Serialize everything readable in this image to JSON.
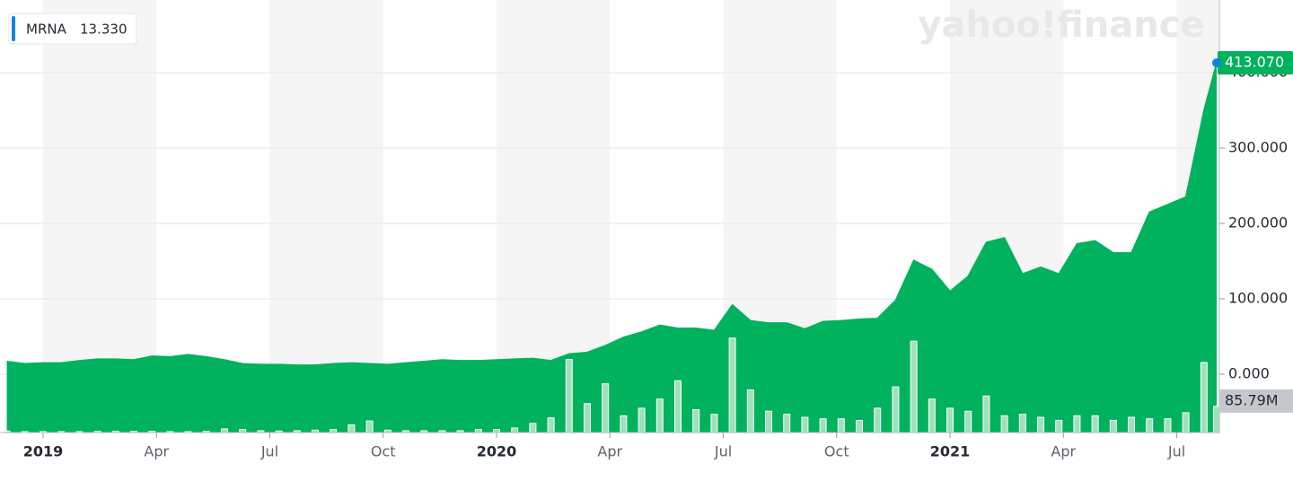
{
  "chart_data": {
    "type": "area",
    "watermark": "yahoo!finance",
    "legend_value": "13.330",
    "x": [
      2018.92,
      2018.96,
      2019.0,
      2019.04,
      2019.08,
      2019.12,
      2019.16,
      2019.2,
      2019.24,
      2019.28,
      2019.32,
      2019.36,
      2019.4,
      2019.44,
      2019.48,
      2019.52,
      2019.56,
      2019.6,
      2019.64,
      2019.68,
      2019.72,
      2019.76,
      2019.8,
      2019.84,
      2019.88,
      2019.92,
      2019.96,
      2020.0,
      2020.04,
      2020.08,
      2020.12,
      2020.16,
      2020.2,
      2020.24,
      2020.28,
      2020.32,
      2020.36,
      2020.4,
      2020.44,
      2020.48,
      2020.52,
      2020.56,
      2020.6,
      2020.64,
      2020.68,
      2020.72,
      2020.76,
      2020.8,
      2020.84,
      2020.88,
      2020.92,
      2020.96,
      2021.0,
      2021.04,
      2021.08,
      2021.12,
      2021.16,
      2021.2,
      2021.24,
      2021.28,
      2021.32,
      2021.36,
      2021.4,
      2021.44,
      2021.48,
      2021.52,
      2021.56,
      2021.588
    ],
    "series": [
      {
        "name": "MRNA",
        "color": "#00b15d",
        "values": [
          17,
          14,
          15,
          15,
          18,
          20,
          20,
          19,
          24,
          23,
          26,
          23,
          19,
          14,
          13,
          13,
          12,
          12,
          14,
          15,
          14,
          13,
          15,
          17,
          19,
          18,
          18,
          19,
          20,
          21,
          18,
          27,
          29,
          38,
          49,
          56,
          65,
          61,
          61,
          58,
          92,
          71,
          68,
          68,
          60,
          70,
          71,
          73,
          74,
          98,
          151,
          139,
          110,
          130,
          175,
          181,
          133,
          142,
          133,
          173,
          177,
          161,
          161,
          215,
          225,
          235,
          350,
          413.07
        ]
      }
    ],
    "volume": {
      "color": "#9fe0bd",
      "ylim": [
        0,
        330
      ],
      "values": [
        5,
        3,
        3,
        3,
        3,
        4,
        4,
        4,
        4,
        3,
        3,
        4,
        12,
        10,
        6,
        5,
        6,
        8,
        10,
        25,
        38,
        8,
        6,
        6,
        6,
        6,
        10,
        10,
        15,
        30,
        48,
        240,
        95,
        160,
        55,
        80,
        110,
        170,
        75,
        60,
        310,
        140,
        70,
        60,
        50,
        45,
        45,
        40,
        80,
        150,
        300,
        110,
        80,
        70,
        120,
        55,
        60,
        50,
        40,
        55,
        55,
        40,
        50,
        45,
        45,
        65,
        230,
        85.79
      ]
    },
    "last_price": {
      "value": 413.07,
      "label": "413.070"
    },
    "last_volume": {
      "value": 85.79,
      "label": "85.79M"
    },
    "xlim": [
      2018.905,
      2021.594
    ],
    "xticks": [
      {
        "value": 2019,
        "label": "2019"
      },
      {
        "value": 2019.25,
        "label": "Apr"
      },
      {
        "value": 2019.5,
        "label": "Jul"
      },
      {
        "value": 2019.75,
        "label": "Oct"
      },
      {
        "value": 2020,
        "label": "2020"
      },
      {
        "value": 2020.25,
        "label": "Apr"
      },
      {
        "value": 2020.5,
        "label": "Jul"
      },
      {
        "value": 2020.75,
        "label": "Oct"
      },
      {
        "value": 2021,
        "label": "2021"
      },
      {
        "value": 2021.25,
        "label": "Apr"
      },
      {
        "value": 2021.5,
        "label": "Jul"
      }
    ],
    "ylim": [
      -77.4,
      496.4
    ],
    "yticks": [
      {
        "value": 0,
        "label": "0.000"
      },
      {
        "value": 100,
        "label": "100.000"
      },
      {
        "value": 200,
        "label": "200.000"
      },
      {
        "value": 300,
        "label": "300.000"
      },
      {
        "value": 400,
        "label": "400.000"
      }
    ],
    "grid": true
  }
}
